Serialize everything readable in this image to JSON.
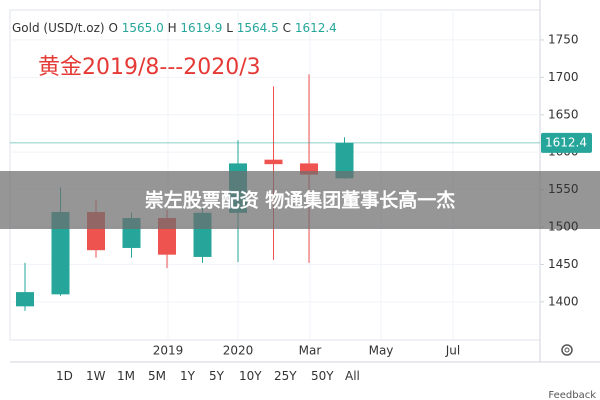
{
  "chart_data": {
    "type": "candlestick",
    "symbol": "Gold (USD/t.oz)",
    "legend_items": [
      {
        "key": "O",
        "value": "1565.0"
      },
      {
        "key": "H",
        "value": "1619.9"
      },
      {
        "key": "L",
        "value": "1564.5"
      },
      {
        "key": "C",
        "value": "1612.4"
      }
    ],
    "title": "黄金2019/8---2020/3",
    "open": [
      1394,
      1410,
      1520,
      1472,
      1512,
      1460,
      1519,
      1590,
      1585,
      1565
    ],
    "high": [
      1452,
      1553,
      1536,
      1519,
      1523,
      1525,
      1616,
      1688,
      1704,
      1619.9
    ],
    "low": [
      1388,
      1408,
      1459,
      1459,
      1445,
      1452,
      1453,
      1456,
      1452,
      1564.5
    ],
    "close": [
      1413,
      1520,
      1469,
      1512,
      1463,
      1519,
      1585,
      1584,
      1570,
      1612.4
    ],
    "up_color": "#26a69a",
    "down_color": "#ef5350",
    "x_labels": [
      "2019",
      "2020",
      "Mar",
      "May",
      "Jul"
    ],
    "ylim": [
      1349,
      1790
    ],
    "yticks": [
      1400,
      1450,
      1500,
      1550,
      1600,
      1650,
      1700,
      1750
    ],
    "grid": true,
    "last_price": 1612.4
  },
  "overlay": {
    "text": "崇左股票配资 物通集团董事长高一杰"
  },
  "range_buttons": [
    "1D",
    "1W",
    "1M",
    "5M",
    "1Y",
    "5Y",
    "10Y",
    "25Y",
    "50Y",
    "All"
  ],
  "footer": {
    "feedback": "Feedback"
  }
}
